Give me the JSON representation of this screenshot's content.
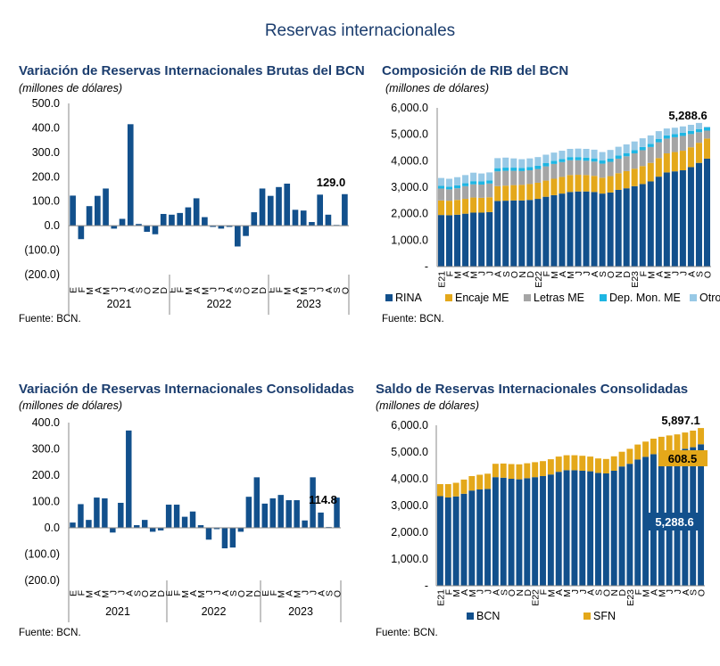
{
  "page_title": "Reservas internacionales",
  "colors": {
    "bcn": "#12508c",
    "encaje": "#e4a81a",
    "letras": "#a5a5a5",
    "dep": "#1eb6e3",
    "otros": "#98c9e6",
    "title": "#1b3d6e"
  },
  "panels": [
    {
      "title": "Variación de Reservas Internacionales Brutas del BCN",
      "unit": "(millones de dólares)",
      "source": "Fuente: BCN."
    },
    {
      "title": "Composición de RIB del BCN",
      "unit": "(millones de dólares)",
      "source": "Fuente: BCN."
    },
    {
      "title": "Variación de Reservas Internacionales Consolidadas",
      "unit": "(millones de dólares)",
      "source": "Fuente: BCN."
    },
    {
      "title": "Saldo de Reservas Internacionales Consolidadas",
      "unit": "(millones de dólares)",
      "source": "Fuente: BCN."
    }
  ],
  "chart_data": [
    {
      "type": "bar",
      "categories": [
        "E",
        "F",
        "M",
        "A",
        "M",
        "J",
        "J",
        "A",
        "S",
        "O",
        "N",
        "D",
        "E",
        "F",
        "M",
        "A",
        "M",
        "J",
        "J",
        "A",
        "S",
        "O",
        "N",
        "D",
        "E",
        "F",
        "M",
        "A",
        "M",
        "J",
        "J",
        "A",
        "S",
        "O"
      ],
      "years": [
        "2021",
        "2022",
        "2023"
      ],
      "values": [
        123,
        -55,
        80,
        122,
        152,
        -12,
        28,
        415,
        7,
        -25,
        -35,
        48,
        45,
        52,
        75,
        112,
        35,
        -5,
        -12,
        -5,
        -85,
        -42,
        55,
        152,
        122,
        158,
        172,
        65,
        62,
        15,
        127,
        45,
        3,
        129
      ],
      "ylim": [
        -200,
        500
      ],
      "yticks": [
        "500.0",
        "400.0",
        "300.0",
        "200.0",
        "100.0",
        "0.0",
        "(100.0)",
        "(200.0)"
      ],
      "annotation": "129.0",
      "grid": false
    },
    {
      "type": "bar",
      "stacked": true,
      "categories": [
        "E21",
        "F",
        "M",
        "A",
        "M",
        "J",
        "J",
        "A",
        "S",
        "O",
        "N",
        "D",
        "E22",
        "F",
        "M",
        "A",
        "M",
        "J",
        "J",
        "A",
        "S",
        "O",
        "N",
        "D",
        "E23",
        "F",
        "M",
        "A",
        "M",
        "J",
        "J",
        "A",
        "S",
        "O"
      ],
      "series": [
        {
          "name": "RINA",
          "values": [
            1950,
            1940,
            1960,
            2000,
            2040,
            2040,
            2060,
            2480,
            2490,
            2500,
            2500,
            2520,
            2560,
            2640,
            2700,
            2760,
            2820,
            2840,
            2840,
            2820,
            2760,
            2800,
            2900,
            2960,
            3040,
            3120,
            3220,
            3400,
            3560,
            3600,
            3640,
            3760,
            3920,
            4080
          ]
        },
        {
          "name": "Encaje ME",
          "values": [
            550,
            550,
            560,
            560,
            570,
            560,
            560,
            560,
            570,
            580,
            590,
            600,
            610,
            610,
            620,
            630,
            640,
            630,
            620,
            610,
            600,
            620,
            630,
            650,
            660,
            680,
            700,
            700,
            720,
            730,
            740,
            750,
            760,
            760
          ]
        },
        {
          "name": "Letras ME",
          "values": [
            450,
            430,
            440,
            480,
            500,
            500,
            520,
            560,
            560,
            540,
            520,
            520,
            520,
            540,
            560,
            560,
            560,
            550,
            540,
            540,
            530,
            540,
            550,
            560,
            580,
            600,
            600,
            600,
            560,
            560,
            560,
            500,
            400,
            300
          ]
        },
        {
          "name": "Dep. Mon. ME",
          "values": [
            100,
            100,
            110,
            110,
            120,
            120,
            120,
            120,
            120,
            120,
            120,
            120,
            120,
            120,
            120,
            120,
            120,
            120,
            120,
            120,
            120,
            120,
            120,
            120,
            120,
            120,
            120,
            120,
            120,
            120,
            120,
            120,
            120,
            120
          ]
        },
        {
          "name": "Otros",
          "values": [
            300,
            300,
            310,
            310,
            320,
            300,
            300,
            380,
            380,
            350,
            330,
            330,
            330,
            320,
            310,
            310,
            310,
            320,
            330,
            330,
            320,
            330,
            330,
            330,
            330,
            330,
            320,
            300,
            260,
            240,
            240,
            230,
            230,
            28.6
          ]
        }
      ],
      "ylim": [
        0,
        6000
      ],
      "yticks": [
        "6,000.0",
        "5,000.0",
        "4,000.0",
        "3,000.0",
        "2,000.0",
        "1,000.0",
        "-"
      ],
      "annotation": "5,288.6",
      "legend": "bottom",
      "grid": false
    },
    {
      "type": "bar",
      "categories": [
        "E",
        "F",
        "M",
        "A",
        "M",
        "J",
        "J",
        "A",
        "S",
        "O",
        "N",
        "D",
        "E",
        "F",
        "M",
        "A",
        "M",
        "J",
        "J",
        "A",
        "S",
        "O",
        "N",
        "D",
        "E",
        "F",
        "M",
        "A",
        "M",
        "J",
        "J",
        "A",
        "S",
        "O"
      ],
      "years": [
        "2021",
        "2022",
        "2023"
      ],
      "values": [
        20,
        90,
        30,
        115,
        112,
        -18,
        95,
        370,
        10,
        30,
        -15,
        -10,
        88,
        88,
        42,
        62,
        10,
        -45,
        -5,
        -78,
        -75,
        -15,
        118,
        192,
        92,
        112,
        125,
        105,
        105,
        28,
        192,
        58,
        3,
        114.8
      ],
      "ylim": [
        -200,
        400
      ],
      "yticks": [
        "400.0",
        "300.0",
        "200.0",
        "100.0",
        "0.0",
        "(100.0)",
        "(200.0)"
      ],
      "annotation": "114.8",
      "grid": false
    },
    {
      "type": "bar",
      "stacked": true,
      "categories": [
        "E21",
        "F",
        "M",
        "A",
        "M",
        "J",
        "J",
        "A",
        "S",
        "O",
        "N",
        "D",
        "E22",
        "F",
        "M",
        "A",
        "M",
        "J",
        "J",
        "A",
        "S",
        "O",
        "N",
        "D",
        "E23",
        "F",
        "M",
        "A",
        "M",
        "J",
        "J",
        "A",
        "S",
        "O"
      ],
      "series": [
        {
          "name": "BCN",
          "values": [
            3350,
            3300,
            3340,
            3440,
            3560,
            3600,
            3620,
            4060,
            4040,
            4000,
            3980,
            4020,
            4060,
            4100,
            4160,
            4260,
            4320,
            4320,
            4300,
            4280,
            4220,
            4200,
            4300,
            4460,
            4560,
            4720,
            4820,
            4920,
            4980,
            5020,
            5060,
            5120,
            5180,
            5288.6
          ]
        },
        {
          "name": "SFN",
          "values": [
            450,
            500,
            510,
            530,
            540,
            550,
            570,
            500,
            530,
            550,
            560,
            560,
            560,
            560,
            570,
            570,
            560,
            560,
            560,
            550,
            540,
            540,
            540,
            550,
            560,
            560,
            570,
            580,
            590,
            600,
            600,
            610,
            620,
            608.5
          ]
        }
      ],
      "ylim": [
        0,
        6000
      ],
      "yticks": [
        "6,000.0",
        "5,000.0",
        "4,000.0",
        "3,000.0",
        "2,000.0",
        "1,000.0",
        "-"
      ],
      "annotations": [
        "5,897.1",
        "608.5",
        "5,288.6"
      ],
      "legend": "bottom",
      "grid": false
    }
  ]
}
